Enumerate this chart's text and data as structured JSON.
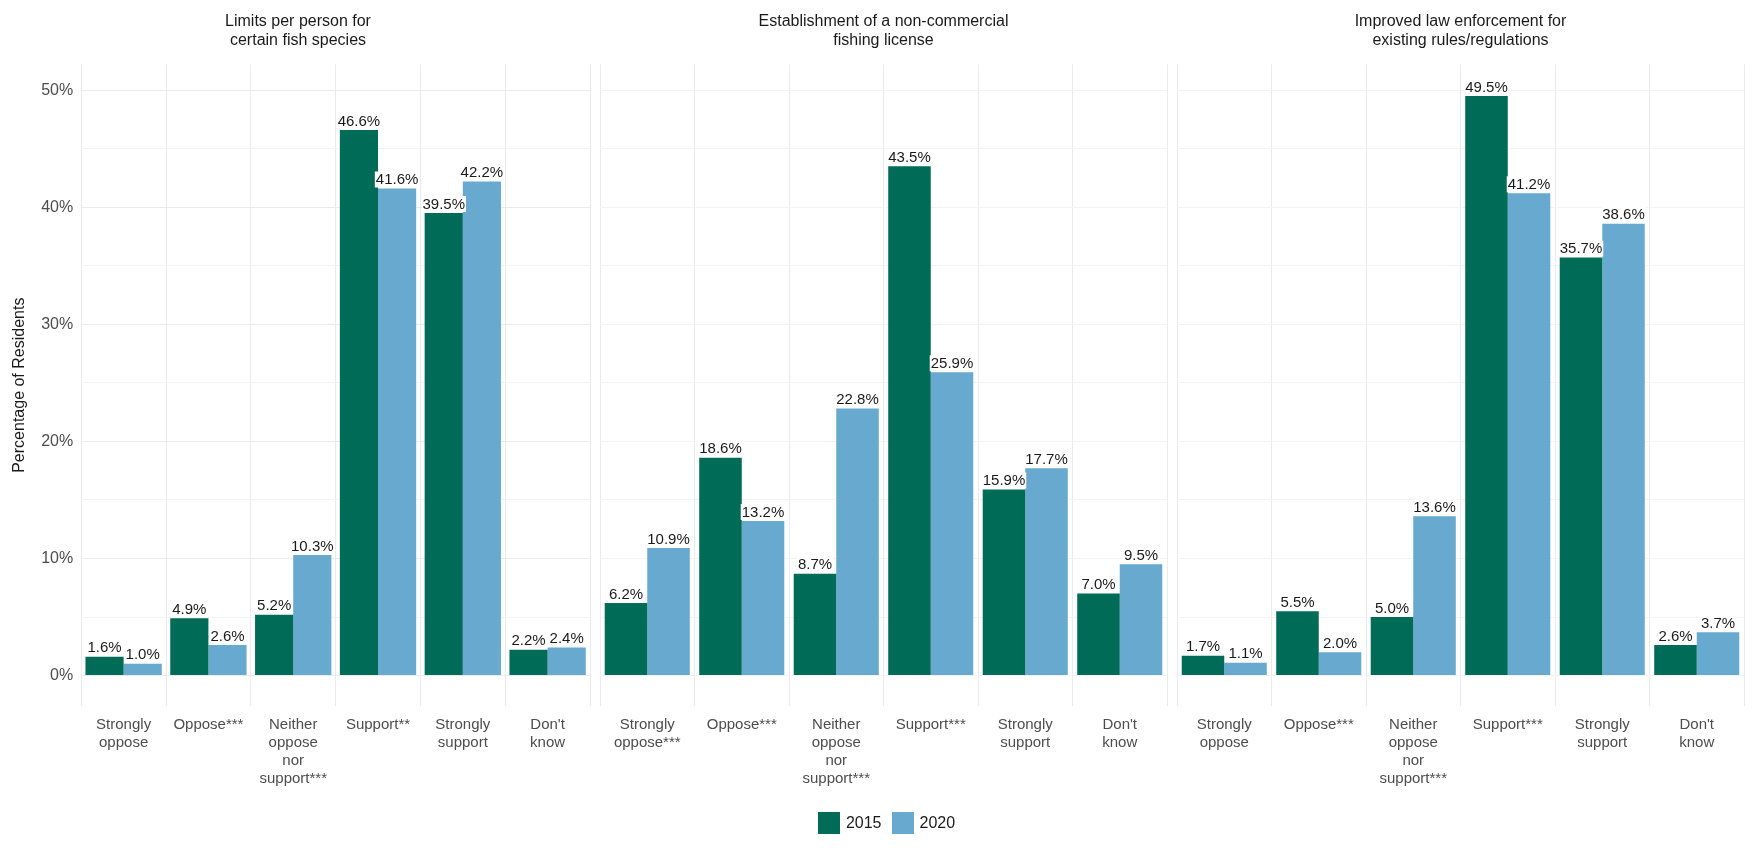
{
  "chart_data": [
    {
      "type": "bar",
      "title": "Limits per person for\ncertain fish species",
      "ylabel": "Percentage of Residents",
      "categories": [
        "Strongly\noppose",
        "Oppose***",
        "Neither\noppose\nnor\nsupport***",
        "Support**",
        "Strongly\nsupport",
        "Don't\nknow"
      ],
      "series": [
        {
          "color": "#006b56",
          "values": [
            1.6,
            4.9,
            5.2,
            46.6,
            39.5,
            2.2
          ],
          "value_labels": [
            "1.6%",
            "4.9%",
            "5.2%",
            "46.6%",
            "39.5%",
            "2.2%"
          ]
        },
        {
          "color": "#67a9cf",
          "values": [
            1.0,
            2.6,
            10.3,
            41.6,
            42.2,
            2.4
          ],
          "value_labels": [
            "1.0%",
            "2.6%",
            "10.3%",
            "41.6%",
            "42.2%",
            "2.4%"
          ]
        }
      ],
      "ylim": [
        -2.6,
        52.2
      ],
      "yticks": [
        {
          "value": 0,
          "label": "0%"
        },
        {
          "value": 5,
          "label": null
        },
        {
          "value": 10,
          "label": "10%"
        },
        {
          "value": 15,
          "label": null
        },
        {
          "value": 20,
          "label": "20%"
        },
        {
          "value": 25,
          "label": null
        },
        {
          "value": 30,
          "label": "30%"
        },
        {
          "value": 35,
          "label": null
        },
        {
          "value": 40,
          "label": "40%"
        },
        {
          "value": 45,
          "label": null
        },
        {
          "value": 50,
          "label": "50%"
        }
      ],
      "grid": true,
      "legend": false
    },
    {
      "type": "bar",
      "title": "Establishment of a non-commercial\nfishing license",
      "categories": [
        "Strongly\noppose***",
        "Oppose***",
        "Neither\noppose\nnor\nsupport***",
        "Support***",
        "Strongly\nsupport",
        "Don't\nknow"
      ],
      "series": [
        {
          "name": "2015",
          "color": "#006b56",
          "values": [
            6.2,
            18.6,
            8.7,
            43.5,
            15.9,
            7.0
          ],
          "value_labels": [
            "6.2%",
            "18.6%",
            "8.7%",
            "43.5%",
            "15.9%",
            "7.0%"
          ]
        },
        {
          "name": "2020",
          "color": "#67a9cf",
          "values": [
            10.9,
            13.2,
            22.8,
            25.9,
            17.7,
            9.5
          ],
          "value_labels": [
            "10.9%",
            "13.2%",
            "22.8%",
            "25.9%",
            "17.7%",
            "9.5%"
          ]
        }
      ],
      "ylim": [
        -2.6,
        52.2
      ],
      "yticks": [
        {
          "value": 0,
          "label": null
        },
        {
          "value": 5,
          "label": null
        },
        {
          "value": 10,
          "label": null
        },
        {
          "value": 15,
          "label": null
        },
        {
          "value": 20,
          "label": null
        },
        {
          "value": 25,
          "label": null
        },
        {
          "value": 30,
          "label": null
        },
        {
          "value": 35,
          "label": null
        },
        {
          "value": 40,
          "label": null
        },
        {
          "value": 45,
          "label": null
        },
        {
          "value": 50,
          "label": null
        }
      ],
      "tick_labels": "x",
      "grid": true,
      "legend": "bottom"
    },
    {
      "type": "bar",
      "title": "Improved law enforcement for\nexisting rules/regulations",
      "categories": [
        "Strongly\noppose",
        "Oppose***",
        "Neither\noppose\nnor\nsupport***",
        "Support***",
        "Strongly\nsupport",
        "Don't\nknow"
      ],
      "series": [
        {
          "color": "#006b56",
          "values": [
            1.7,
            5.5,
            5.0,
            49.5,
            35.7,
            2.6
          ],
          "value_labels": [
            "1.7%",
            "5.5%",
            "5.0%",
            "49.5%",
            "35.7%",
            "2.6%"
          ]
        },
        {
          "color": "#67a9cf",
          "values": [
            1.1,
            2.0,
            13.6,
            41.2,
            38.6,
            3.7
          ],
          "value_labels": [
            "1.1%",
            "2.0%",
            "13.6%",
            "41.2%",
            "38.6%",
            "3.7%"
          ]
        }
      ],
      "ylim": [
        -2.6,
        52.2
      ],
      "yticks": [
        {
          "value": 0,
          "label": null
        },
        {
          "value": 5,
          "label": null
        },
        {
          "value": 10,
          "label": null
        },
        {
          "value": 15,
          "label": null
        },
        {
          "value": 20,
          "label": null
        },
        {
          "value": 25,
          "label": null
        },
        {
          "value": 30,
          "label": null
        },
        {
          "value": 35,
          "label": null
        },
        {
          "value": 40,
          "label": null
        },
        {
          "value": 45,
          "label": null
        },
        {
          "value": 50,
          "label": null
        }
      ],
      "tick_labels": "x",
      "grid": true,
      "legend": false
    }
  ]
}
